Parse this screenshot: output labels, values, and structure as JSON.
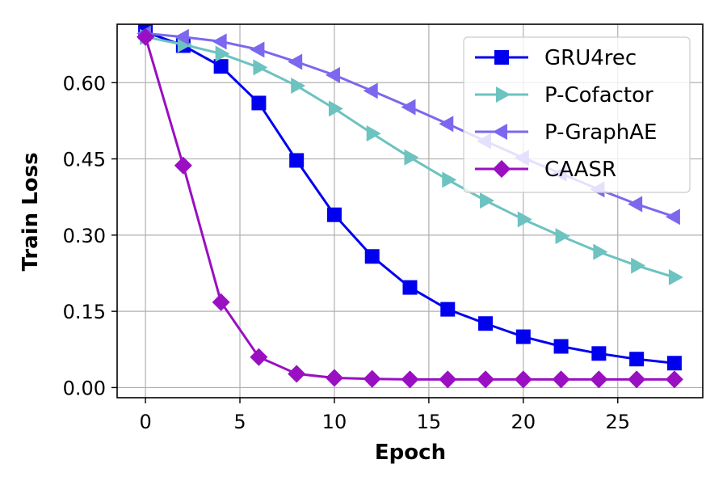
{
  "chart_data": {
    "type": "line",
    "xlabel": "Epoch",
    "ylabel": "Train Loss",
    "xlim": [
      -1.5,
      29.5
    ],
    "ylim": [
      -0.02,
      0.715
    ],
    "xticks": [
      0,
      5,
      10,
      15,
      20,
      25
    ],
    "yticks": [
      0.0,
      0.15,
      0.3,
      0.45,
      0.6
    ],
    "ytick_labels": [
      "0.00",
      "0.15",
      "0.30",
      "0.45",
      "0.60"
    ],
    "grid": true,
    "legend_position": "top-right",
    "x": [
      0,
      2,
      4,
      6,
      8,
      10,
      12,
      14,
      16,
      18,
      20,
      22,
      24,
      26,
      28
    ],
    "series": [
      {
        "name": "GRU4rec",
        "color": "#0000ee",
        "marker": "square",
        "values": [
          0.7,
          0.673,
          0.632,
          0.56,
          0.447,
          0.34,
          0.258,
          0.197,
          0.154,
          0.126,
          0.1,
          0.081,
          0.067,
          0.056,
          0.048
        ]
      },
      {
        "name": "P-Cofactor",
        "color": "#6cc3c0",
        "marker": "triangle-right",
        "values": [
          0.69,
          0.675,
          0.657,
          0.63,
          0.594,
          0.549,
          0.5,
          0.453,
          0.409,
          0.368,
          0.331,
          0.298,
          0.267,
          0.24,
          0.217
        ]
      },
      {
        "name": "P-GraphAE",
        "color": "#7b68ee",
        "marker": "triangle-left",
        "values": [
          0.697,
          0.69,
          0.681,
          0.665,
          0.641,
          0.615,
          0.584,
          0.552,
          0.519,
          0.485,
          0.452,
          0.421,
          0.39,
          0.361,
          0.336
        ]
      },
      {
        "name": "CAASR",
        "color": "#9a0fc2",
        "marker": "diamond",
        "values": [
          0.69,
          0.437,
          0.168,
          0.06,
          0.027,
          0.019,
          0.017,
          0.016,
          0.016,
          0.016,
          0.016,
          0.016,
          0.016,
          0.016,
          0.016
        ]
      }
    ]
  }
}
